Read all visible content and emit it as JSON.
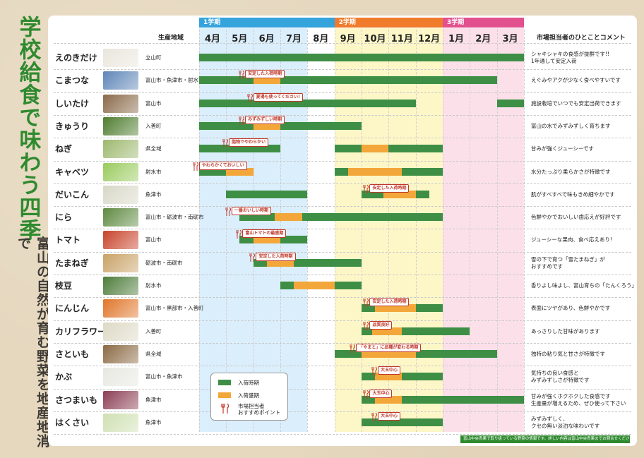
{
  "title": "学校給食で味わう四季",
  "subtitle": "富山の自然が育む野菜を地産地消で",
  "terms": [
    {
      "label": "1学期",
      "color": "#35a3dc",
      "start": 4,
      "end": 8
    },
    {
      "label": "2学期",
      "color": "#f07b2a",
      "start": 9,
      "end": 12
    },
    {
      "label": "3学期",
      "color": "#e2508e",
      "start": 1,
      "end": 3
    }
  ],
  "headers": {
    "region": "生産地域",
    "comment": "市場担当者のひとことコメント"
  },
  "month_labels": [
    "4月",
    "5月",
    "6月",
    "7月",
    "8月",
    "9月",
    "10月",
    "11月",
    "12月",
    "1月",
    "2月",
    "3月"
  ],
  "legend": {
    "supply": "入荷時期",
    "peak": "入荷盛期",
    "point": "市場担当者\nおすすめポイント"
  },
  "colors": {
    "supply": "#3e8f45",
    "peak": "#f3a73a",
    "term1_bg": "#dbeefb",
    "term2_bg": "#fdf7c8",
    "term3_bg": "#fbe0ea"
  },
  "footer": "富山中央青果で取り扱っている野菜の情報です。詳しい内容は富山中央青果までお問合せください。",
  "chart_data": {
    "type": "gantt",
    "x_axis": "month (school year Apr–Mar)",
    "rows": [
      {
        "name": "えのきだけ",
        "region": "立山町",
        "comment": "シャキシャキの食感が抜群です!!\n1年通して安定入荷",
        "thumb": "#e9e6dc",
        "supply": [
          [
            4,
            3
          ]
        ],
        "peak": [],
        "tip": null
      },
      {
        "name": "こまつな",
        "region": "富山市・魚津市・射水市",
        "comment": "えぐみやアクが少なく食べやすいです",
        "thumb": "#5f86b8",
        "supply": [
          [
            4,
            2
          ]
        ],
        "peak": [
          [
            6,
            6
          ]
        ],
        "tip": {
          "text": "安定した入荷時期",
          "month": 5.7
        }
      },
      {
        "name": "しいたけ",
        "region": "富山市",
        "comment": "施設栽培でいつでも安定出荷できます",
        "thumb": "#8a6a4a",
        "supply": [
          [
            4,
            11
          ],
          [
            3,
            3
          ]
        ],
        "peak": [],
        "tip": {
          "text": "夏場も使ってください!",
          "month": 6
        }
      },
      {
        "name": "きゅうり",
        "region": "入善町",
        "comment": "富山の水でみずみずしく育ちます",
        "thumb": "#4f7d2f",
        "supply": [
          [
            4,
            9
          ]
        ],
        "peak": [
          [
            6,
            6
          ]
        ],
        "tip": {
          "text": "みずみずしい時期",
          "month": 5.7
        }
      },
      {
        "name": "ねぎ",
        "region": "県全域",
        "comment": "甘みが強くジューシーです",
        "thumb": "#9db86e",
        "supply": [
          [
            4,
            6
          ],
          [
            9,
            12
          ]
        ],
        "peak": [
          [
            10,
            10
          ]
        ],
        "tip": {
          "text": "脂物でやわらかい",
          "month": 5.1
        }
      },
      {
        "name": "キャベツ",
        "region": "射水市",
        "comment": "水分たっぷり柔らかさが特徴です",
        "thumb": "#9acb5e",
        "supply": [
          [
            4,
            5
          ],
          [
            9,
            12
          ]
        ],
        "peak": [
          [
            5,
            5
          ],
          [
            9.5,
            10.5
          ]
        ],
        "tip": {
          "text": "やわらかくておいしい",
          "month": 4
        }
      },
      {
        "name": "だいこん",
        "region": "魚津市",
        "comment": "肌がすべすべで味もきめ細やかです",
        "thumb": "#d8d8c8",
        "supply": [
          [
            5,
            7
          ],
          [
            10,
            11.5
          ]
        ],
        "peak": [
          [
            10.8,
            11
          ]
        ],
        "tip": {
          "text": "安定した入荷時期",
          "month": 10.3
        }
      },
      {
        "name": "にら",
        "region": "富山市・砺波市・南砺市",
        "comment": "色鮮やかでおいしい歯応えが好評です",
        "thumb": "#5f8a42",
        "supply": [
          [
            5.5,
            12
          ]
        ],
        "peak": [
          [
            6.8,
            6.8
          ]
        ],
        "tip": {
          "text": "一番おいしい時期",
          "month": 5.2
        }
      },
      {
        "name": "トマト",
        "region": "富山市",
        "comment": "ジューシーな果肉、食べ応えあり!",
        "thumb": "#c8432b",
        "supply": [
          [
            5.5,
            7
          ]
        ],
        "peak": [
          [
            6,
            6
          ]
        ],
        "tip": {
          "text": "富山トマトの最盛期",
          "month": 5.6
        }
      },
      {
        "name": "たまねぎ",
        "region": "砺波市・南砺市",
        "comment": "雪の下で育つ「雪たまねぎ」が\nおすすめです",
        "thumb": "#c9a266",
        "supply": [
          [
            6,
            9
          ]
        ],
        "peak": [
          [
            6.5,
            6.5
          ]
        ],
        "tip": {
          "text": "安定した入荷時期",
          "month": 6.1
        }
      },
      {
        "name": "枝豆",
        "region": "射水市",
        "comment": "香りよし味よし、富山育ちの「たんくろう」",
        "thumb": "#4d7c3a",
        "supply": [
          [
            7,
            9
          ]
        ],
        "peak": [
          [
            7.5,
            8
          ]
        ],
        "tip": null
      },
      {
        "name": "にんじん",
        "region": "富山市・黒部市・入善町",
        "comment": "表面にツヤがあり、色鮮やかです",
        "thumb": "#e0762a",
        "supply": [
          [
            10,
            12
          ]
        ],
        "peak": [
          [
            10.5,
            11
          ]
        ],
        "tip": {
          "text": "安定した入荷時期",
          "month": 10.3
        }
      },
      {
        "name": "カリフラワー",
        "region": "入善町",
        "comment": "あっさりした甘味があります",
        "thumb": "#ddd9c6",
        "supply": [
          [
            10,
            1
          ]
        ],
        "peak": [
          [
            10.4,
            10.5
          ]
        ],
        "tip": {
          "text": "品質良好",
          "month": 10.3
        }
      },
      {
        "name": "さといも",
        "region": "県全域",
        "comment": "独特の粘り気と甘さが特徴です",
        "thumb": "#8b6a44",
        "supply": [
          [
            9,
            2
          ]
        ],
        "peak": [
          [
            10,
            11
          ]
        ],
        "tip": {
          "text": "「やまと」に品種が変わる時期",
          "month": 9.8
        }
      },
      {
        "name": "かぶ",
        "region": "富山市・魚津市",
        "comment": "気持ちの良い食感と\nみずみずしさが特徴です",
        "thumb": "#e6e8e0",
        "supply": [
          [
            10,
            12
          ]
        ],
        "peak": [
          [
            10.5,
            10.5
          ]
        ],
        "tip": {
          "text": "大玉中心",
          "month": 10.6
        }
      },
      {
        "name": "さつまいも",
        "region": "魚津市",
        "comment": "甘みが強くホクホクした食感です\n生産量が増えるため、ぜひ使って下さい",
        "thumb": "#8c3f55",
        "supply": [
          [
            10,
            3
          ]
        ],
        "peak": [
          [
            10.5,
            10.5
          ]
        ],
        "tip": {
          "text": "大玉中心",
          "month": 10.3
        }
      },
      {
        "name": "はくさい",
        "region": "魚津市",
        "comment": "みずみずしく、\nクセの無い淡泊な味わいです",
        "thumb": "#cfe0b2",
        "supply": [
          [
            10,
            12
          ]
        ],
        "peak": [],
        "tip": {
          "text": "大玉中心",
          "month": 10.6
        }
      }
    ]
  }
}
